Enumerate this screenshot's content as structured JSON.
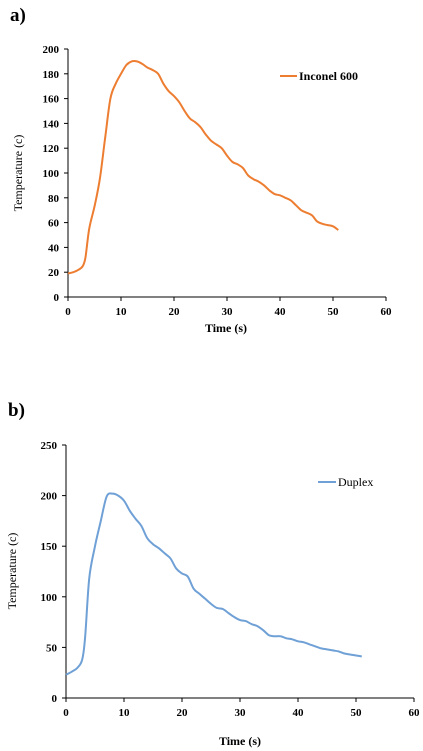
{
  "panels": {
    "a": "a)",
    "b": "b)"
  },
  "chart_data": [
    {
      "type": "line",
      "xlabel": "Time (s)",
      "ylabel": "Temperature (c)",
      "xlim": [
        0,
        60
      ],
      "ylim": [
        0,
        200
      ],
      "xticks": [
        0,
        10,
        20,
        30,
        40,
        50,
        60
      ],
      "yticks": [
        0,
        20,
        40,
        60,
        80,
        100,
        120,
        140,
        160,
        180,
        200
      ],
      "grid": false,
      "legend_position": "top-right",
      "series": [
        {
          "name": "Inconel 600",
          "color": "#ed7d31",
          "x": [
            0,
            1,
            2,
            2.8,
            3.3,
            4,
            5,
            6,
            7,
            8,
            9,
            10,
            11,
            12,
            13,
            14,
            15,
            16,
            17,
            18,
            19,
            20,
            21,
            22,
            23,
            24,
            25,
            26,
            27,
            28,
            29,
            30,
            31,
            32,
            33,
            34,
            35,
            36,
            37,
            38,
            39,
            40,
            41,
            42,
            43,
            44,
            45,
            46,
            47,
            48,
            49,
            50,
            51
          ],
          "y": [
            19,
            20,
            22,
            25,
            32,
            55,
            73,
            95,
            128,
            160,
            172,
            180,
            187,
            190,
            190,
            188,
            185,
            183,
            180,
            172,
            166,
            162,
            157,
            150,
            144,
            141,
            137,
            131,
            126,
            123,
            120,
            114,
            109,
            107,
            104,
            98,
            95,
            93,
            90,
            86,
            83,
            82,
            80,
            78,
            74,
            70,
            68,
            66,
            61,
            59,
            58,
            57,
            54
          ]
        }
      ]
    },
    {
      "type": "line",
      "xlabel": "Time (s)",
      "ylabel": "Temperature (c)",
      "xlim": [
        0,
        60
      ],
      "ylim": [
        0,
        250
      ],
      "xticks": [
        0,
        10,
        20,
        30,
        40,
        50,
        60
      ],
      "yticks": [
        0,
        50,
        100,
        150,
        200,
        250
      ],
      "grid": false,
      "legend_position": "top-right",
      "series": [
        {
          "name": "Duplex",
          "color": "#6fa0d6",
          "x": [
            0,
            1,
            2,
            2.8,
            3.3,
            4,
            5,
            6,
            7,
            8,
            9,
            10,
            11,
            12,
            13,
            14,
            15,
            16,
            17,
            18,
            19,
            20,
            21,
            22,
            23,
            24,
            25,
            26,
            27,
            28,
            29,
            30,
            31,
            32,
            33,
            34,
            35,
            36,
            37,
            38,
            39,
            40,
            41,
            42,
            43,
            44,
            45,
            46,
            47,
            48,
            49,
            50,
            51
          ],
          "y": [
            23,
            26,
            30,
            38,
            60,
            118,
            150,
            175,
            199,
            202,
            200,
            195,
            185,
            177,
            170,
            158,
            152,
            148,
            143,
            138,
            128,
            123,
            120,
            108,
            103,
            98,
            93,
            89,
            88,
            84,
            80,
            77,
            76,
            73,
            71,
            67,
            62,
            61,
            61,
            59,
            58,
            56,
            55,
            53,
            51,
            49,
            48,
            47,
            46,
            44,
            43,
            42,
            41
          ]
        }
      ]
    }
  ]
}
